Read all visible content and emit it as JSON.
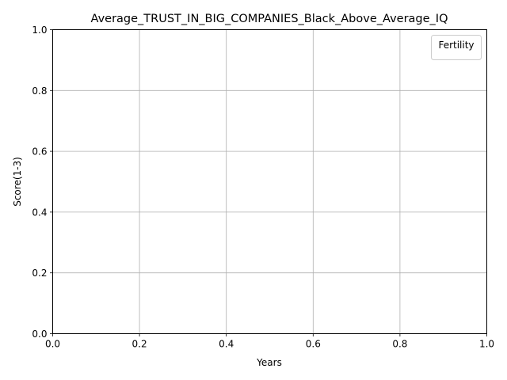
{
  "chart_data": {
    "type": "line",
    "title": "Average_TRUST_IN_BIG_COMPANIES_Black_Above_Average_IQ",
    "xlabel": "Years",
    "ylabel": "Score(1-3)",
    "xlim": [
      0.0,
      1.0
    ],
    "ylim": [
      0.0,
      1.0
    ],
    "x_ticks": [
      "0.0",
      "0.2",
      "0.4",
      "0.6",
      "0.8",
      "1.0"
    ],
    "y_ticks": [
      "0.0",
      "0.2",
      "0.4",
      "0.6",
      "0.8",
      "1.0"
    ],
    "grid": true,
    "legend": {
      "title": "Fertility",
      "placement": "upper right",
      "entries": []
    },
    "series": []
  }
}
